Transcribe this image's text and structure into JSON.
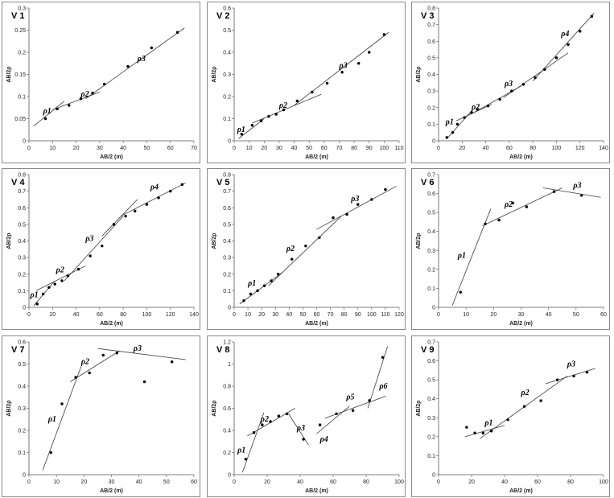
{
  "chart_data": [
    {
      "type": "scatter",
      "title": "V 1",
      "xlabel": "AB/2 (m)",
      "ylabel": "AB/2ρ",
      "xlim": [
        0,
        70
      ],
      "ylim": [
        0,
        0.3
      ],
      "xticks": [
        0,
        10,
        20,
        30,
        40,
        50,
        60,
        70
      ],
      "yticks": [
        0,
        0.05,
        0.1,
        0.15,
        0.2,
        0.25,
        0.3
      ],
      "points": [
        [
          7,
          0.05
        ],
        [
          12,
          0.072
        ],
        [
          17,
          0.08
        ],
        [
          22,
          0.095
        ],
        [
          27,
          0.108
        ],
        [
          32,
          0.128
        ],
        [
          42,
          0.168
        ],
        [
          52,
          0.21
        ],
        [
          63,
          0.245
        ]
      ],
      "fit_lines": [
        [
          [
            2,
            0.033
          ],
          [
            15,
            0.09
          ]
        ],
        [
          [
            10,
            0.07
          ],
          [
            30,
            0.11
          ]
        ],
        [
          [
            24,
            0.095
          ],
          [
            66,
            0.255
          ]
        ]
      ],
      "annotations": [
        {
          "text": "ρ1",
          "x": 6,
          "y": 0.062
        },
        {
          "text": "ρ2",
          "x": 22,
          "y": 0.1
        },
        {
          "text": "ρ3",
          "x": 46,
          "y": 0.18
        }
      ],
      "grid": false,
      "legend": "none"
    },
    {
      "type": "scatter",
      "title": "V 2",
      "xlabel": "AB/2 (m)",
      "ylabel": "AB/2ρ",
      "xlim": [
        0,
        110
      ],
      "ylim": [
        0,
        0.6
      ],
      "xticks": [
        0,
        10,
        20,
        30,
        40,
        50,
        60,
        70,
        80,
        90,
        100,
        110
      ],
      "yticks": [
        0,
        0.1,
        0.2,
        0.3,
        0.4,
        0.5,
        0.6
      ],
      "points": [
        [
          5,
          0.03
        ],
        [
          12,
          0.07
        ],
        [
          18,
          0.09
        ],
        [
          23,
          0.11
        ],
        [
          28,
          0.12
        ],
        [
          33,
          0.14
        ],
        [
          42,
          0.18
        ],
        [
          52,
          0.22
        ],
        [
          62,
          0.26
        ],
        [
          72,
          0.31
        ],
        [
          83,
          0.35
        ],
        [
          90,
          0.4
        ],
        [
          100,
          0.48
        ]
      ],
      "fit_lines": [
        [
          [
            3,
            0.01
          ],
          [
            20,
            0.1
          ]
        ],
        [
          [
            12,
            0.08
          ],
          [
            58,
            0.21
          ]
        ],
        [
          [
            40,
            0.16
          ],
          [
            103,
            0.49
          ]
        ]
      ],
      "annotations": [
        {
          "text": "ρ1",
          "x": 2,
          "y": 0.04
        },
        {
          "text": "ρ2",
          "x": 30,
          "y": 0.15
        },
        {
          "text": "ρ3",
          "x": 70,
          "y": 0.33
        }
      ],
      "grid": false,
      "legend": "none"
    },
    {
      "type": "scatter",
      "title": "V 3",
      "xlabel": "AB/2 (m)",
      "ylabel": "AB/2ρ",
      "xlim": [
        0,
        140
      ],
      "ylim": [
        0,
        0.8
      ],
      "xticks": [
        0,
        20,
        40,
        60,
        80,
        100,
        120,
        140
      ],
      "yticks": [
        0,
        0.1,
        0.2,
        0.3,
        0.4,
        0.5,
        0.6,
        0.7,
        0.8
      ],
      "points": [
        [
          7,
          0.02
        ],
        [
          12,
          0.05
        ],
        [
          16,
          0.1
        ],
        [
          22,
          0.14
        ],
        [
          28,
          0.17
        ],
        [
          33,
          0.19
        ],
        [
          42,
          0.21
        ],
        [
          52,
          0.25
        ],
        [
          62,
          0.3
        ],
        [
          72,
          0.34
        ],
        [
          82,
          0.38
        ],
        [
          90,
          0.43
        ],
        [
          100,
          0.5
        ],
        [
          110,
          0.58
        ],
        [
          120,
          0.66
        ],
        [
          130,
          0.75
        ]
      ],
      "fit_lines": [
        [
          [
            8,
            0.02
          ],
          [
            28,
            0.18
          ]
        ],
        [
          [
            15,
            0.12
          ],
          [
            45,
            0.22
          ]
        ],
        [
          [
            30,
            0.17
          ],
          [
            70,
            0.33
          ]
        ],
        [
          [
            55,
            0.26
          ],
          [
            110,
            0.53
          ]
        ],
        [
          [
            80,
            0.36
          ],
          [
            132,
            0.77
          ]
        ]
      ],
      "annotations": [
        {
          "text": "ρ1",
          "x": 6,
          "y": 0.1
        },
        {
          "text": "ρ2",
          "x": 28,
          "y": 0.19
        },
        {
          "text": "ρ3",
          "x": 56,
          "y": 0.33
        },
        {
          "text": "ρ4",
          "x": 104,
          "y": 0.63
        }
      ],
      "grid": false,
      "legend": "none"
    },
    {
      "type": "scatter",
      "title": "V 4",
      "xlabel": "AB/2 (m)",
      "ylabel": "AB/2ρ",
      "xlim": [
        0,
        140
      ],
      "ylim": [
        0,
        0.8
      ],
      "xticks": [
        0,
        20,
        40,
        60,
        80,
        100,
        120,
        140
      ],
      "yticks": [
        0,
        0.1,
        0.2,
        0.3,
        0.4,
        0.5,
        0.6,
        0.7,
        0.8
      ],
      "points": [
        [
          7,
          0.02
        ],
        [
          12,
          0.08
        ],
        [
          17,
          0.12
        ],
        [
          22,
          0.14
        ],
        [
          28,
          0.16
        ],
        [
          33,
          0.19
        ],
        [
          42,
          0.23
        ],
        [
          52,
          0.31
        ],
        [
          62,
          0.37
        ],
        [
          72,
          0.5
        ],
        [
          82,
          0.55
        ],
        [
          90,
          0.58
        ],
        [
          100,
          0.62
        ],
        [
          110,
          0.66
        ],
        [
          120,
          0.7
        ],
        [
          130,
          0.74
        ]
      ],
      "fit_lines": [
        [
          [
            4,
            0.01
          ],
          [
            22,
            0.16
          ]
        ],
        [
          [
            6,
            0.1
          ],
          [
            48,
            0.25
          ]
        ],
        [
          [
            30,
            0.16
          ],
          [
            80,
            0.55
          ]
        ],
        [
          [
            62,
            0.43
          ],
          [
            92,
            0.65
          ]
        ],
        [
          [
            78,
            0.55
          ],
          [
            133,
            0.75
          ]
        ]
      ],
      "annotations": [
        {
          "text": "ρ1",
          "x": 1,
          "y": 0.06
        },
        {
          "text": "ρ2",
          "x": 23,
          "y": 0.21
        },
        {
          "text": "ρ3",
          "x": 48,
          "y": 0.4
        },
        {
          "text": "ρ4",
          "x": 103,
          "y": 0.71
        }
      ],
      "grid": false,
      "legend": "none"
    },
    {
      "type": "scatter",
      "title": "V 5",
      "xlabel": "AB/2 (m)",
      "ylabel": "AB/2ρ",
      "xlim": [
        0,
        120
      ],
      "ylim": [
        0,
        0.8
      ],
      "xticks": [
        0,
        10,
        20,
        30,
        40,
        50,
        60,
        70,
        80,
        90,
        100,
        110,
        120
      ],
      "yticks": [
        0,
        0.1,
        0.2,
        0.3,
        0.4,
        0.5,
        0.6,
        0.7,
        0.8
      ],
      "points": [
        [
          7,
          0.04
        ],
        [
          12,
          0.08
        ],
        [
          17,
          0.1
        ],
        [
          22,
          0.13
        ],
        [
          27,
          0.16
        ],
        [
          32,
          0.2
        ],
        [
          42,
          0.29
        ],
        [
          52,
          0.37
        ],
        [
          62,
          0.42
        ],
        [
          72,
          0.54
        ],
        [
          82,
          0.56
        ],
        [
          90,
          0.62
        ],
        [
          100,
          0.65
        ],
        [
          110,
          0.71
        ]
      ],
      "fit_lines": [
        [
          [
            4,
            0.02
          ],
          [
            35,
            0.21
          ]
        ],
        [
          [
            25,
            0.13
          ],
          [
            78,
            0.55
          ]
        ],
        [
          [
            60,
            0.47
          ],
          [
            118,
            0.73
          ]
        ]
      ],
      "annotations": [
        {
          "text": "ρ1",
          "x": 10,
          "y": 0.13
        },
        {
          "text": "ρ2",
          "x": 38,
          "y": 0.34
        },
        {
          "text": "ρ3",
          "x": 85,
          "y": 0.64
        }
      ],
      "grid": false,
      "legend": "none"
    },
    {
      "type": "scatter",
      "title": "V 6",
      "xlabel": "AB/2 (m)",
      "ylabel": "AB/2ρ",
      "xlim": [
        0,
        60
      ],
      "ylim": [
        0,
        0.7
      ],
      "xticks": [
        0,
        10,
        20,
        30,
        40,
        50,
        60
      ],
      "yticks": [
        0,
        0.1,
        0.2,
        0.3,
        0.4,
        0.5,
        0.6,
        0.7
      ],
      "points": [
        [
          8,
          0.08
        ],
        [
          17,
          0.44
        ],
        [
          22,
          0.46
        ],
        [
          27,
          0.55
        ],
        [
          32,
          0.53
        ],
        [
          42,
          0.61
        ],
        [
          52,
          0.59
        ]
      ],
      "fit_lines": [
        [
          [
            5,
            0.01
          ],
          [
            19,
            0.52
          ]
        ],
        [
          [
            16,
            0.43
          ],
          [
            45,
            0.63
          ]
        ],
        [
          [
            38,
            0.63
          ],
          [
            59,
            0.58
          ]
        ]
      ],
      "annotations": [
        {
          "text": "ρ1",
          "x": 7,
          "y": 0.26
        },
        {
          "text": "ρ2",
          "x": 24,
          "y": 0.53
        },
        {
          "text": "ρ3",
          "x": 49,
          "y": 0.63
        }
      ],
      "grid": false,
      "legend": "none"
    },
    {
      "type": "scatter",
      "title": "V 7",
      "xlabel": "AB/2 (m)",
      "ylabel": "AB/2ρ",
      "xlim": [
        0,
        60
      ],
      "ylim": [
        0,
        0.6
      ],
      "xticks": [
        0,
        10,
        20,
        30,
        40,
        50,
        60
      ],
      "yticks": [
        0,
        0.1,
        0.2,
        0.3,
        0.4,
        0.5,
        0.6
      ],
      "points": [
        [
          8,
          0.1
        ],
        [
          12,
          0.32
        ],
        [
          17,
          0.44
        ],
        [
          22,
          0.46
        ],
        [
          27,
          0.54
        ],
        [
          32,
          0.55
        ],
        [
          42,
          0.42
        ],
        [
          52,
          0.51
        ]
      ],
      "fit_lines": [
        [
          [
            5,
            0.02
          ],
          [
            19,
            0.49
          ]
        ],
        [
          [
            15,
            0.42
          ],
          [
            33,
            0.56
          ]
        ],
        [
          [
            25,
            0.57
          ],
          [
            57,
            0.52
          ]
        ]
      ],
      "annotations": [
        {
          "text": "ρ1",
          "x": 7,
          "y": 0.24
        },
        {
          "text": "ρ2",
          "x": 19,
          "y": 0.5
        },
        {
          "text": "ρ3",
          "x": 38,
          "y": 0.56
        }
      ],
      "grid": false,
      "legend": "none"
    },
    {
      "type": "scatter",
      "title": "V 8",
      "xlabel": "AB/2 (m)",
      "ylabel": "AB/2ρ",
      "xlim": [
        0,
        100
      ],
      "ylim": [
        0,
        1.2
      ],
      "xticks": [
        0,
        20,
        40,
        60,
        80,
        100
      ],
      "yticks": [
        0,
        0.2,
        0.4,
        0.6,
        0.8,
        1,
        1.2
      ],
      "points": [
        [
          7,
          0.14
        ],
        [
          12,
          0.38
        ],
        [
          17,
          0.45
        ],
        [
          22,
          0.48
        ],
        [
          27,
          0.53
        ],
        [
          32,
          0.55
        ],
        [
          42,
          0.32
        ],
        [
          52,
          0.45
        ],
        [
          62,
          0.55
        ],
        [
          72,
          0.58
        ],
        [
          82,
          0.67
        ],
        [
          90,
          1.06
        ]
      ],
      "fit_lines": [
        [
          [
            5,
            0.02
          ],
          [
            18,
            0.56
          ]
        ],
        [
          [
            8,
            0.35
          ],
          [
            37,
            0.6
          ]
        ],
        [
          [
            33,
            0.55
          ],
          [
            45,
            0.27
          ]
        ],
        [
          [
            50,
            0.37
          ],
          [
            70,
            0.62
          ]
        ],
        [
          [
            55,
            0.51
          ],
          [
            92,
            0.71
          ]
        ],
        [
          [
            81,
            0.6
          ],
          [
            93,
            1.16
          ]
        ]
      ],
      "annotations": [
        {
          "text": "ρ1",
          "x": 2,
          "y": 0.2
        },
        {
          "text": "ρ2",
          "x": 16,
          "y": 0.48
        },
        {
          "text": "ρ3",
          "x": 38,
          "y": 0.4
        },
        {
          "text": "ρ4",
          "x": 52,
          "y": 0.3
        },
        {
          "text": "ρ5",
          "x": 68,
          "y": 0.68
        },
        {
          "text": "ρ6",
          "x": 88,
          "y": 0.78
        }
      ],
      "grid": false,
      "legend": "none"
    },
    {
      "type": "scatter",
      "title": "V 9",
      "xlabel": "AB/2 (m)",
      "ylabel": "AB/2ρ",
      "xlim": [
        0,
        100
      ],
      "ylim": [
        0,
        0.7
      ],
      "xticks": [
        0,
        20,
        40,
        60,
        80,
        100
      ],
      "yticks": [
        0,
        0.1,
        0.2,
        0.3,
        0.4,
        0.5,
        0.6,
        0.7
      ],
      "points": [
        [
          17,
          0.25
        ],
        [
          22,
          0.22
        ],
        [
          27,
          0.22
        ],
        [
          32,
          0.23
        ],
        [
          42,
          0.29
        ],
        [
          52,
          0.36
        ],
        [
          62,
          0.39
        ],
        [
          72,
          0.5
        ],
        [
          82,
          0.52
        ],
        [
          90,
          0.54
        ]
      ],
      "fit_lines": [
        [
          [
            16,
            0.2
          ],
          [
            40,
            0.26
          ]
        ],
        [
          [
            25,
            0.19
          ],
          [
            78,
            0.52
          ]
        ],
        [
          [
            65,
            0.48
          ],
          [
            95,
            0.56
          ]
        ]
      ],
      "annotations": [
        {
          "text": "ρ1",
          "x": 28,
          "y": 0.26
        },
        {
          "text": "ρ2",
          "x": 50,
          "y": 0.42
        },
        {
          "text": "ρ3",
          "x": 78,
          "y": 0.57
        }
      ],
      "grid": false,
      "legend": "none"
    }
  ]
}
